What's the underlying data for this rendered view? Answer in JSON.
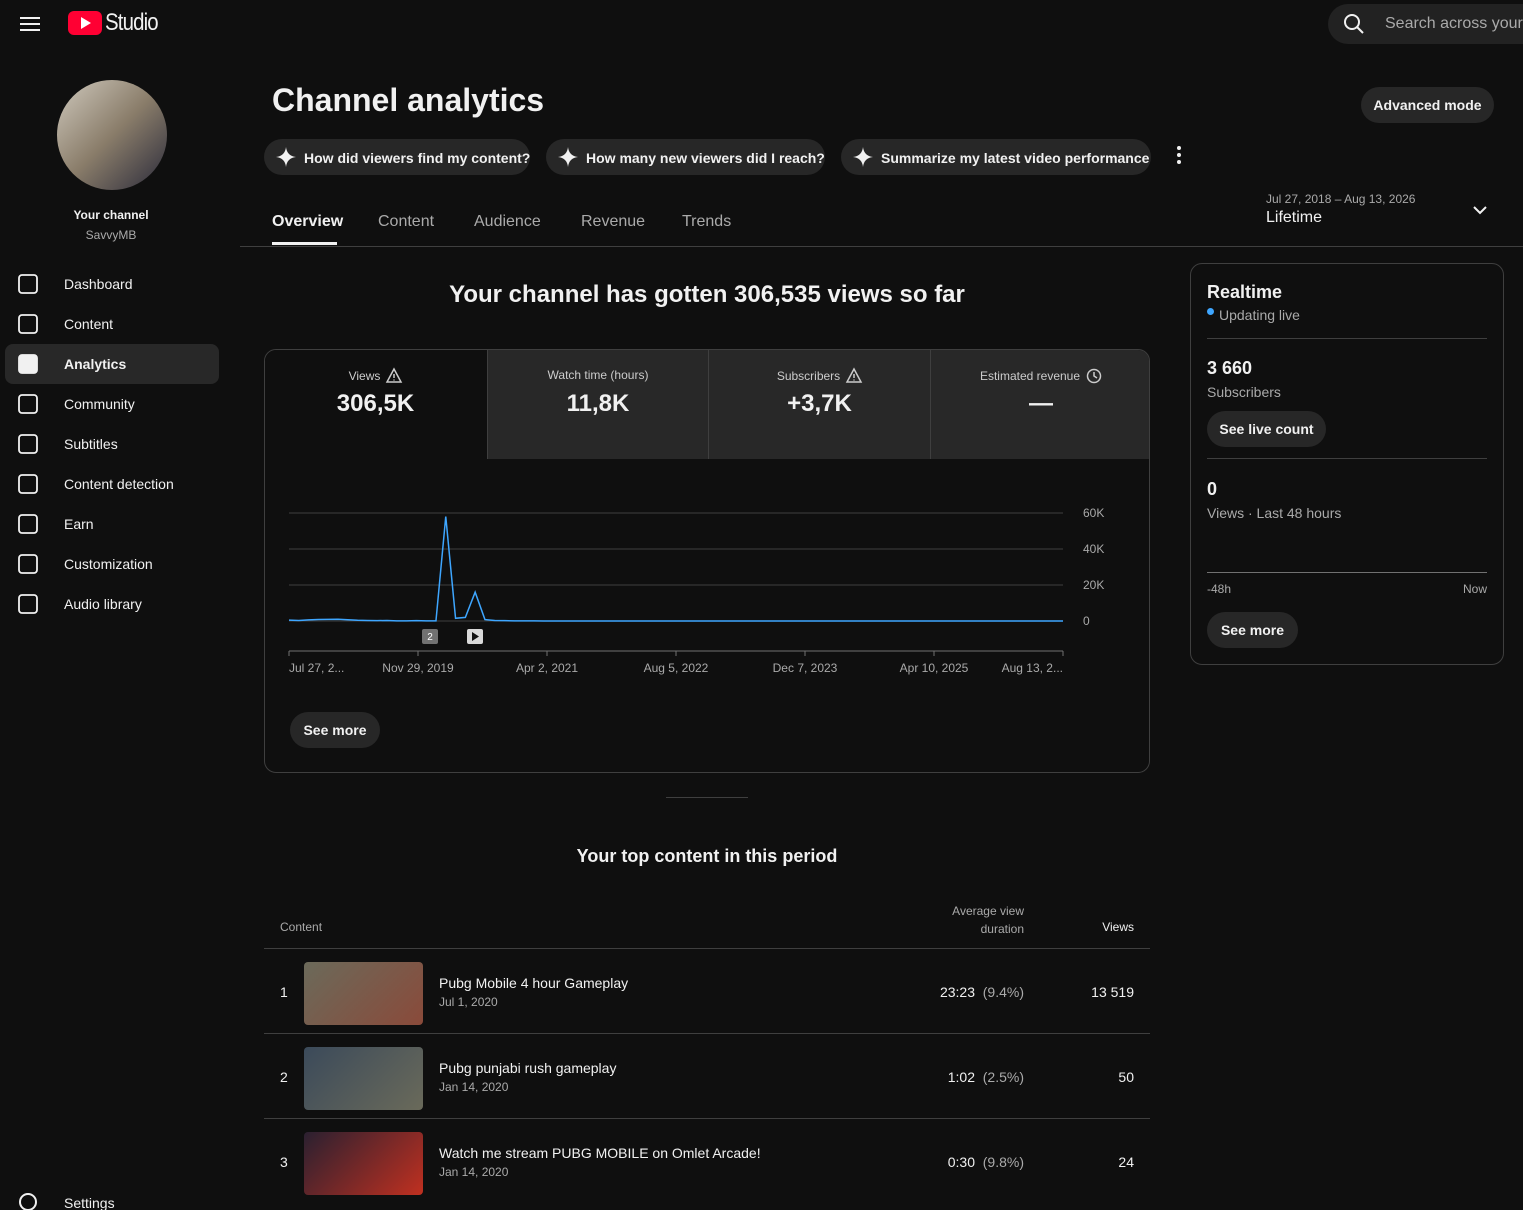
{
  "header": {
    "logo": "Studio",
    "search": "Search across your"
  },
  "sidebar": {
    "channel_label": "Your channel",
    "channel_name": "SavvyMB",
    "nav": [
      "Dashboard",
      "Content",
      "Analytics",
      "Community",
      "Subtitles",
      "Content detection",
      "Earn",
      "Customization",
      "Audio library"
    ],
    "active": "Analytics",
    "settings": "Settings"
  },
  "page": {
    "title": "Channel analytics",
    "advanced_mode": "Advanced mode",
    "prompts": [
      "How did viewers find my content?",
      "How many new viewers did I reach?",
      "Summarize my latest video performance"
    ],
    "tabs": [
      "Overview",
      "Content",
      "Audience",
      "Revenue",
      "Trends"
    ],
    "active_tab": "Overview",
    "date_range": "Jul 27, 2018 – Aug 13, 2026",
    "period": "Lifetime"
  },
  "overview": {
    "headline": "Your channel has gotten 306,535 views so far",
    "metrics": [
      {
        "label": "Views",
        "value": "306,5K",
        "icon": "warning"
      },
      {
        "label": "Watch time (hours)",
        "value": "11,8K"
      },
      {
        "label": "Subscribers",
        "value": "+3,7K",
        "icon": "warning"
      },
      {
        "label": "Estimated revenue",
        "value": "—",
        "icon": "clock"
      }
    ],
    "see_more": "See more"
  },
  "chart_data": {
    "type": "line",
    "color": "#3ea6ff",
    "x_labels": [
      "Jul 27, 2...",
      "Nov 29, 2019",
      "Apr 2, 2021",
      "Aug 5, 2022",
      "Dec 7, 2023",
      "Apr 10, 2025",
      "Aug 13, 2..."
    ],
    "values": [
      500,
      300,
      600,
      800,
      900,
      1000,
      700,
      400,
      300,
      200,
      300,
      100,
      100,
      200,
      100,
      100,
      58000,
      1500,
      2000,
      16000,
      800,
      300,
      200,
      100,
      100,
      100,
      0,
      0,
      0,
      0,
      0,
      0,
      0,
      0,
      0,
      0,
      0,
      0,
      0,
      0,
      0,
      0,
      0,
      0,
      0,
      0,
      0,
      0,
      0,
      0,
      0,
      0,
      0,
      0,
      0,
      0,
      0,
      0,
      0,
      0,
      0,
      0,
      0,
      0,
      0,
      0,
      0,
      0,
      0,
      0,
      0,
      0,
      0,
      0,
      0,
      0,
      0,
      0,
      0,
      0
    ],
    "ylim": [
      0,
      60000
    ],
    "yticks": [
      0,
      {
        "value": 20000,
        "label": "20K"
      },
      {
        "value": 40000,
        "label": "40K"
      },
      {
        "value": 60000,
        "label": "60K"
      }
    ],
    "grid": true,
    "marker_label": "2"
  },
  "realtime": {
    "title": "Realtime",
    "status": "Updating live",
    "subscribers": "3 660",
    "subscribers_label": "Subscribers",
    "live_count": "See live count",
    "views": "0",
    "views_label": "Views · Last 48 hours",
    "start": "-48h",
    "end": "Now",
    "see_more": "See more"
  },
  "top_content": {
    "title": "Your top content in this period",
    "columns": [
      "Content",
      "Average view duration",
      "Views"
    ],
    "rows": [
      {
        "rank": 1,
        "title": "Pubg Mobile 4 hour Gameplay",
        "date": "Jul 1, 2020",
        "duration": "23:23",
        "percent": "(9.4%)",
        "views": "13 519"
      },
      {
        "rank": 2,
        "title": "Pubg punjabi rush gameplay",
        "date": "Jan 14, 2020",
        "duration": "1:02",
        "percent": "(2.5%)",
        "views": "50"
      },
      {
        "rank": 3,
        "title": "Watch me stream PUBG MOBILE on Omlet Arcade!",
        "date": "Jan 14, 2020",
        "duration": "0:30",
        "percent": "(9.8%)",
        "views": "24"
      }
    ]
  }
}
